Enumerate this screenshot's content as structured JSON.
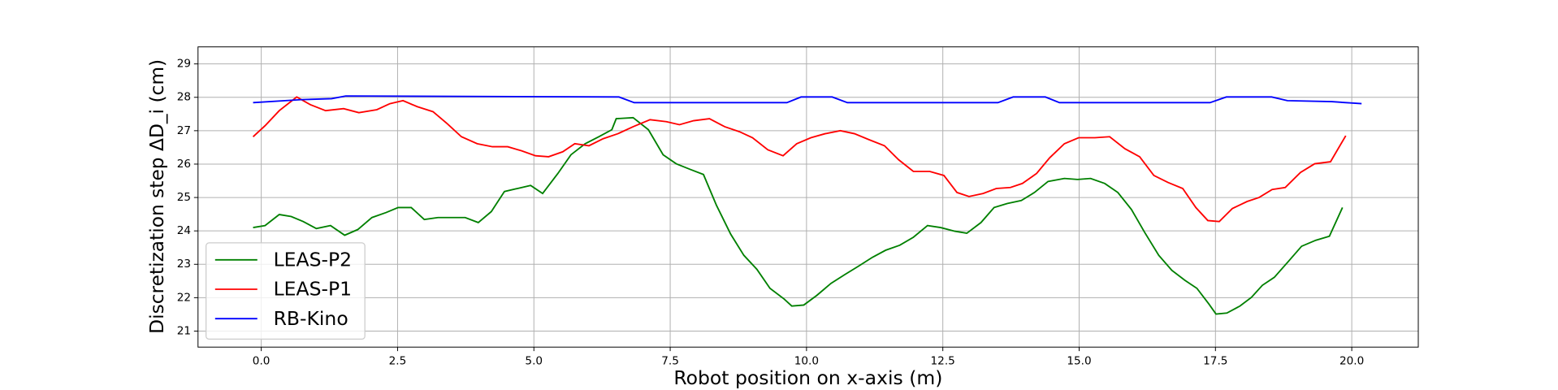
{
  "chart_data": {
    "type": "line",
    "xlabel": "Robot position on x-axis (m)",
    "ylabel": "Discretization step ΔD_i (cm)",
    "xlim": [
      -1.16,
      21.22
    ],
    "ylim": [
      20.52,
      29.51
    ],
    "xticks": [
      {
        "value": 0,
        "label": "0.0"
      },
      2.5,
      {
        "value": 5,
        "label": "5.0"
      },
      7.5,
      {
        "value": 10,
        "label": "10.0"
      },
      12.5,
      {
        "value": 15,
        "label": "15.0"
      },
      17.5,
      {
        "value": 20,
        "label": "20.0"
      }
    ],
    "yticks": [
      21,
      22,
      23,
      24,
      25,
      26,
      27,
      28,
      29
    ],
    "grid": true,
    "legend": "lower left",
    "series": [
      {
        "name": "LEAS-P2",
        "color": "#008000",
        "x": [
          -0.15,
          0.07,
          0.33,
          0.55,
          0.77,
          1.01,
          1.27,
          1.53,
          1.77,
          2.03,
          2.29,
          2.51,
          2.75,
          2.99,
          3.24,
          3.48,
          3.74,
          3.98,
          4.22,
          4.46,
          4.7,
          4.94,
          5.16,
          5.44,
          5.68,
          5.94,
          6.19,
          6.43,
          6.51,
          6.82,
          7.1,
          7.37,
          7.61,
          7.87,
          8.11,
          8.35,
          8.61,
          8.85,
          9.09,
          9.33,
          9.59,
          9.73,
          9.95,
          10.19,
          10.45,
          10.71,
          10.95,
          11.21,
          11.45,
          11.71,
          11.96,
          12.22,
          12.46,
          12.72,
          12.94,
          13.2,
          13.44,
          13.68,
          13.94,
          14.18,
          14.43,
          14.73,
          14.97,
          15.21,
          15.47,
          15.71,
          15.96,
          16.2,
          16.46,
          16.7,
          16.94,
          17.16,
          17.38,
          17.51,
          17.71,
          17.95,
          18.16,
          18.36,
          18.58,
          18.84,
          19.08,
          19.34,
          19.59,
          19.83
        ],
        "values": [
          24.1,
          24.16,
          24.49,
          24.43,
          24.28,
          24.07,
          24.16,
          23.87,
          24.04,
          24.4,
          24.55,
          24.7,
          24.7,
          24.34,
          24.4,
          24.4,
          24.4,
          24.25,
          24.58,
          25.18,
          25.27,
          25.36,
          25.12,
          25.72,
          26.28,
          26.61,
          26.82,
          27.03,
          27.36,
          27.39,
          27.03,
          26.28,
          26.01,
          25.84,
          25.69,
          24.76,
          23.9,
          23.27,
          22.85,
          22.28,
          21.96,
          21.75,
          21.78,
          22.07,
          22.43,
          22.7,
          22.94,
          23.21,
          23.42,
          23.57,
          23.81,
          24.16,
          24.1,
          23.99,
          23.93,
          24.25,
          24.7,
          24.82,
          24.91,
          25.15,
          25.48,
          25.57,
          25.54,
          25.57,
          25.42,
          25.15,
          24.64,
          23.96,
          23.27,
          22.82,
          22.52,
          22.28,
          21.81,
          21.51,
          21.54,
          21.75,
          22.01,
          22.37,
          22.61,
          23.09,
          23.54,
          23.72,
          23.84,
          24.7
        ]
      },
      {
        "name": "LEAS-P1",
        "color": "#ff0000",
        "x": [
          -0.15,
          0.07,
          0.33,
          0.65,
          0.9,
          1.18,
          1.51,
          1.79,
          2.12,
          2.36,
          2.6,
          2.86,
          3.15,
          3.41,
          3.67,
          3.96,
          4.24,
          4.52,
          4.77,
          5.03,
          5.27,
          5.53,
          5.75,
          6.01,
          6.27,
          6.54,
          6.82,
          7.13,
          7.43,
          7.67,
          7.93,
          8.22,
          8.5,
          8.77,
          9.01,
          9.29,
          9.57,
          9.82,
          10.08,
          10.34,
          10.62,
          10.88,
          11.15,
          11.43,
          11.69,
          11.96,
          12.26,
          12.52,
          12.76,
          12.98,
          13.24,
          13.48,
          13.74,
          13.96,
          14.22,
          14.46,
          14.73,
          14.99,
          15.29,
          15.56,
          15.84,
          16.11,
          16.37,
          16.63,
          16.9,
          17.14,
          17.36,
          17.57,
          17.81,
          18.08,
          18.3,
          18.54,
          18.78,
          19.06,
          19.32,
          19.61,
          19.89
        ],
        "values": [
          26.82,
          27.15,
          27.6,
          28.01,
          27.78,
          27.6,
          27.66,
          27.54,
          27.63,
          27.81,
          27.9,
          27.72,
          27.57,
          27.21,
          26.82,
          26.61,
          26.52,
          26.52,
          26.4,
          26.25,
          26.22,
          26.37,
          26.61,
          26.55,
          26.76,
          26.91,
          27.12,
          27.33,
          27.27,
          27.18,
          27.3,
          27.36,
          27.12,
          26.97,
          26.79,
          26.43,
          26.25,
          26.61,
          26.79,
          26.91,
          27.0,
          26.91,
          26.73,
          26.55,
          26.13,
          25.78,
          25.78,
          25.66,
          25.15,
          25.03,
          25.12,
          25.27,
          25.3,
          25.42,
          25.72,
          26.19,
          26.61,
          26.79,
          26.79,
          26.82,
          26.46,
          26.22,
          25.66,
          25.45,
          25.27,
          24.7,
          24.31,
          24.28,
          24.67,
          24.88,
          25.0,
          25.24,
          25.3,
          25.75,
          26.01,
          26.07,
          26.85
        ]
      },
      {
        "name": "RB-Kino",
        "color": "#0000ff",
        "x": [
          -0.15,
          0.74,
          1.29,
          1.55,
          6.56,
          6.84,
          9.64,
          9.9,
          10.47,
          10.75,
          13.51,
          13.79,
          14.38,
          14.64,
          17.4,
          17.7,
          18.53,
          18.82,
          19.63,
          20.18
        ],
        "values": [
          27.84,
          27.93,
          27.96,
          28.04,
          28.01,
          27.84,
          27.84,
          28.01,
          28.01,
          27.84,
          27.84,
          28.01,
          28.01,
          27.84,
          27.84,
          28.01,
          28.01,
          27.9,
          27.87,
          27.81
        ]
      }
    ]
  }
}
